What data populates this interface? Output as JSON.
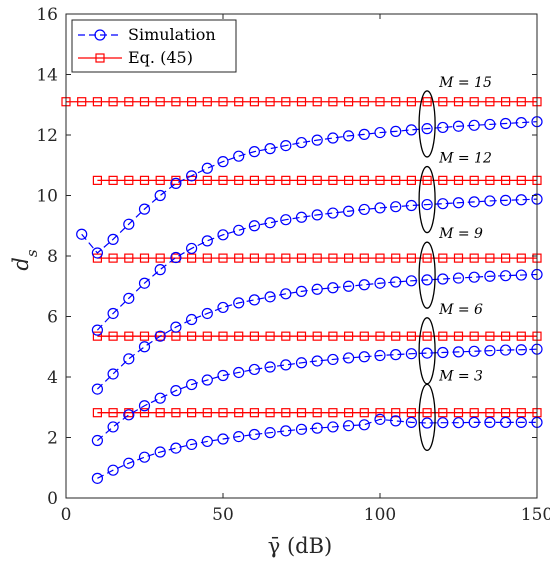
{
  "chart_data": {
    "type": "line",
    "xlabel": "γ̄ (dB)",
    "ylabel": "d",
    "ylabel_sub": "s",
    "xlim": [
      0,
      150
    ],
    "ylim": [
      0,
      16
    ],
    "xticks": [
      0,
      50,
      100,
      150
    ],
    "yticks": [
      0,
      2,
      4,
      6,
      8,
      10,
      12,
      14,
      16
    ],
    "grid": false,
    "legend": {
      "position": "top-left",
      "entries": [
        {
          "label": "Simulation",
          "color": "#0000ff",
          "marker": "circle",
          "style": "dashed"
        },
        {
          "label": "Eq. (45)",
          "color": "#ff0000",
          "marker": "square",
          "style": "solid"
        }
      ]
    },
    "x": [
      10,
      15,
      20,
      25,
      30,
      35,
      40,
      45,
      50,
      55,
      60,
      65,
      70,
      75,
      80,
      85,
      90,
      95,
      100,
      105,
      110,
      115,
      120,
      125,
      130,
      135,
      140,
      145,
      150
    ],
    "simulation": [
      {
        "M": 15,
        "x": [
          5,
          10,
          15,
          20,
          25,
          30,
          35,
          40,
          45,
          50,
          55,
          60,
          65,
          70,
          75,
          80,
          85,
          90,
          95,
          100,
          105,
          110,
          115,
          120,
          125,
          130,
          135,
          140,
          145,
          150
        ],
        "values": [
          8.72,
          8.1,
          8.55,
          9.05,
          9.55,
          10.0,
          10.4,
          10.65,
          10.9,
          11.12,
          11.3,
          11.45,
          11.55,
          11.65,
          11.75,
          11.83,
          11.9,
          11.97,
          12.02,
          12.08,
          12.12,
          12.17,
          12.21,
          12.25,
          12.29,
          12.32,
          12.35,
          12.38,
          12.41,
          12.44
        ]
      },
      {
        "M": 12,
        "values": [
          5.55,
          6.1,
          6.6,
          7.1,
          7.55,
          7.95,
          8.25,
          8.5,
          8.7,
          8.85,
          9.0,
          9.1,
          9.2,
          9.28,
          9.36,
          9.42,
          9.48,
          9.54,
          9.59,
          9.63,
          9.67,
          9.7,
          9.73,
          9.76,
          9.79,
          9.82,
          9.84,
          9.86,
          9.88
        ]
      },
      {
        "M": 9,
        "values": [
          3.6,
          4.1,
          4.6,
          5.0,
          5.35,
          5.65,
          5.9,
          6.1,
          6.3,
          6.45,
          6.55,
          6.65,
          6.75,
          6.83,
          6.9,
          6.95,
          7.0,
          7.05,
          7.1,
          7.14,
          7.18,
          7.21,
          7.24,
          7.27,
          7.3,
          7.33,
          7.35,
          7.37,
          7.39
        ]
      },
      {
        "M": 6,
        "values": [
          1.9,
          2.35,
          2.75,
          3.05,
          3.3,
          3.55,
          3.75,
          3.9,
          4.05,
          4.15,
          4.25,
          4.33,
          4.4,
          4.47,
          4.53,
          4.58,
          4.63,
          4.67,
          4.71,
          4.74,
          4.77,
          4.79,
          4.81,
          4.83,
          4.85,
          4.87,
          4.89,
          4.9,
          4.92
        ]
      },
      {
        "M": 3,
        "values": [
          0.65,
          0.92,
          1.15,
          1.35,
          1.52,
          1.65,
          1.77,
          1.87,
          1.95,
          2.03,
          2.1,
          2.16,
          2.22,
          2.27,
          2.31,
          2.35,
          2.39,
          2.42,
          2.6,
          2.55,
          2.5,
          2.48,
          2.49,
          2.49,
          2.5,
          2.5,
          2.5,
          2.5,
          2.5
        ]
      }
    ],
    "equation": [
      {
        "M": 15,
        "value": 13.1,
        "x_start": 0
      },
      {
        "M": 12,
        "value": 10.5,
        "x_start": 10
      },
      {
        "M": 9,
        "value": 7.93,
        "x_start": 10
      },
      {
        "M": 6,
        "value": 5.35,
        "x_start": 10
      },
      {
        "M": 3,
        "value": 2.82,
        "x_start": 10
      }
    ],
    "eq_x": [
      0,
      5,
      10,
      15,
      20,
      25,
      30,
      35,
      40,
      45,
      50,
      55,
      60,
      65,
      70,
      75,
      80,
      85,
      90,
      95,
      100,
      105,
      110,
      115,
      120,
      125,
      130,
      135,
      140,
      145,
      150
    ],
    "annotations": [
      {
        "text": "M = 15",
        "x": 115,
        "y": 12.2
      },
      {
        "text": "M = 12",
        "x": 115,
        "y": 9.7
      },
      {
        "text": "M = 9",
        "x": 115,
        "y": 7.2
      },
      {
        "text": "M = 6",
        "x": 115,
        "y": 4.7
      },
      {
        "text": "M = 3",
        "x": 115,
        "y": 2.5
      }
    ]
  }
}
